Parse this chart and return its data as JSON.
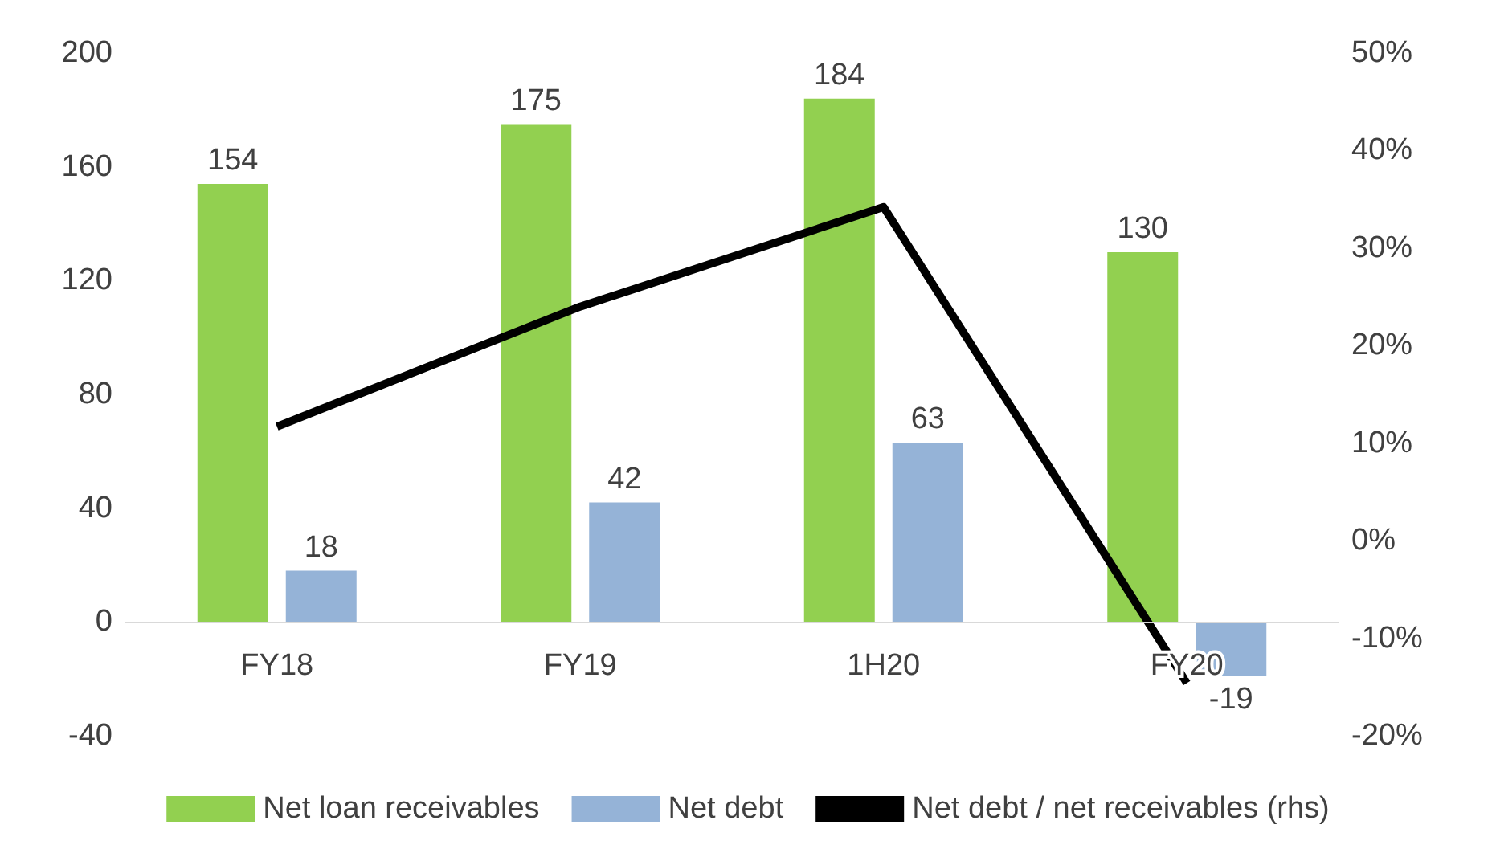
{
  "chart_data": {
    "type": "bar",
    "categories": [
      "FY18",
      "FY19",
      "1H20",
      "FY20"
    ],
    "series": [
      {
        "name": "Net loan receivables",
        "color": "#92d050",
        "values": [
          154,
          175,
          184,
          130
        ],
        "data_labels": true
      },
      {
        "name": "Net debt",
        "color": "#95b3d7",
        "values": [
          18,
          42,
          63,
          -19
        ],
        "data_labels": true
      },
      {
        "name": "Net debt / net receivables (rhs)",
        "type": "line",
        "axis": "y2",
        "color": "#000000",
        "values": [
          11.7,
          24,
          34.2,
          -14.6
        ]
      }
    ],
    "ylim": [
      -40,
      200
    ],
    "yticks": [
      -40,
      0,
      40,
      80,
      120,
      160,
      200
    ],
    "y2lim": [
      -20,
      50
    ],
    "y2ticks": [
      {
        "value": -20,
        "label": "-20%"
      },
      {
        "value": -10,
        "label": "-10%"
      },
      {
        "value": 0,
        "label": "0%"
      },
      {
        "value": 10,
        "label": "10%"
      },
      {
        "value": 20,
        "label": "20%"
      },
      {
        "value": 30,
        "label": "30%"
      },
      {
        "value": 40,
        "label": "40%"
      },
      {
        "value": 50,
        "label": "50%"
      }
    ],
    "grid": false,
    "legend": "bottom",
    "marker": "none",
    "line_style": "solid"
  }
}
